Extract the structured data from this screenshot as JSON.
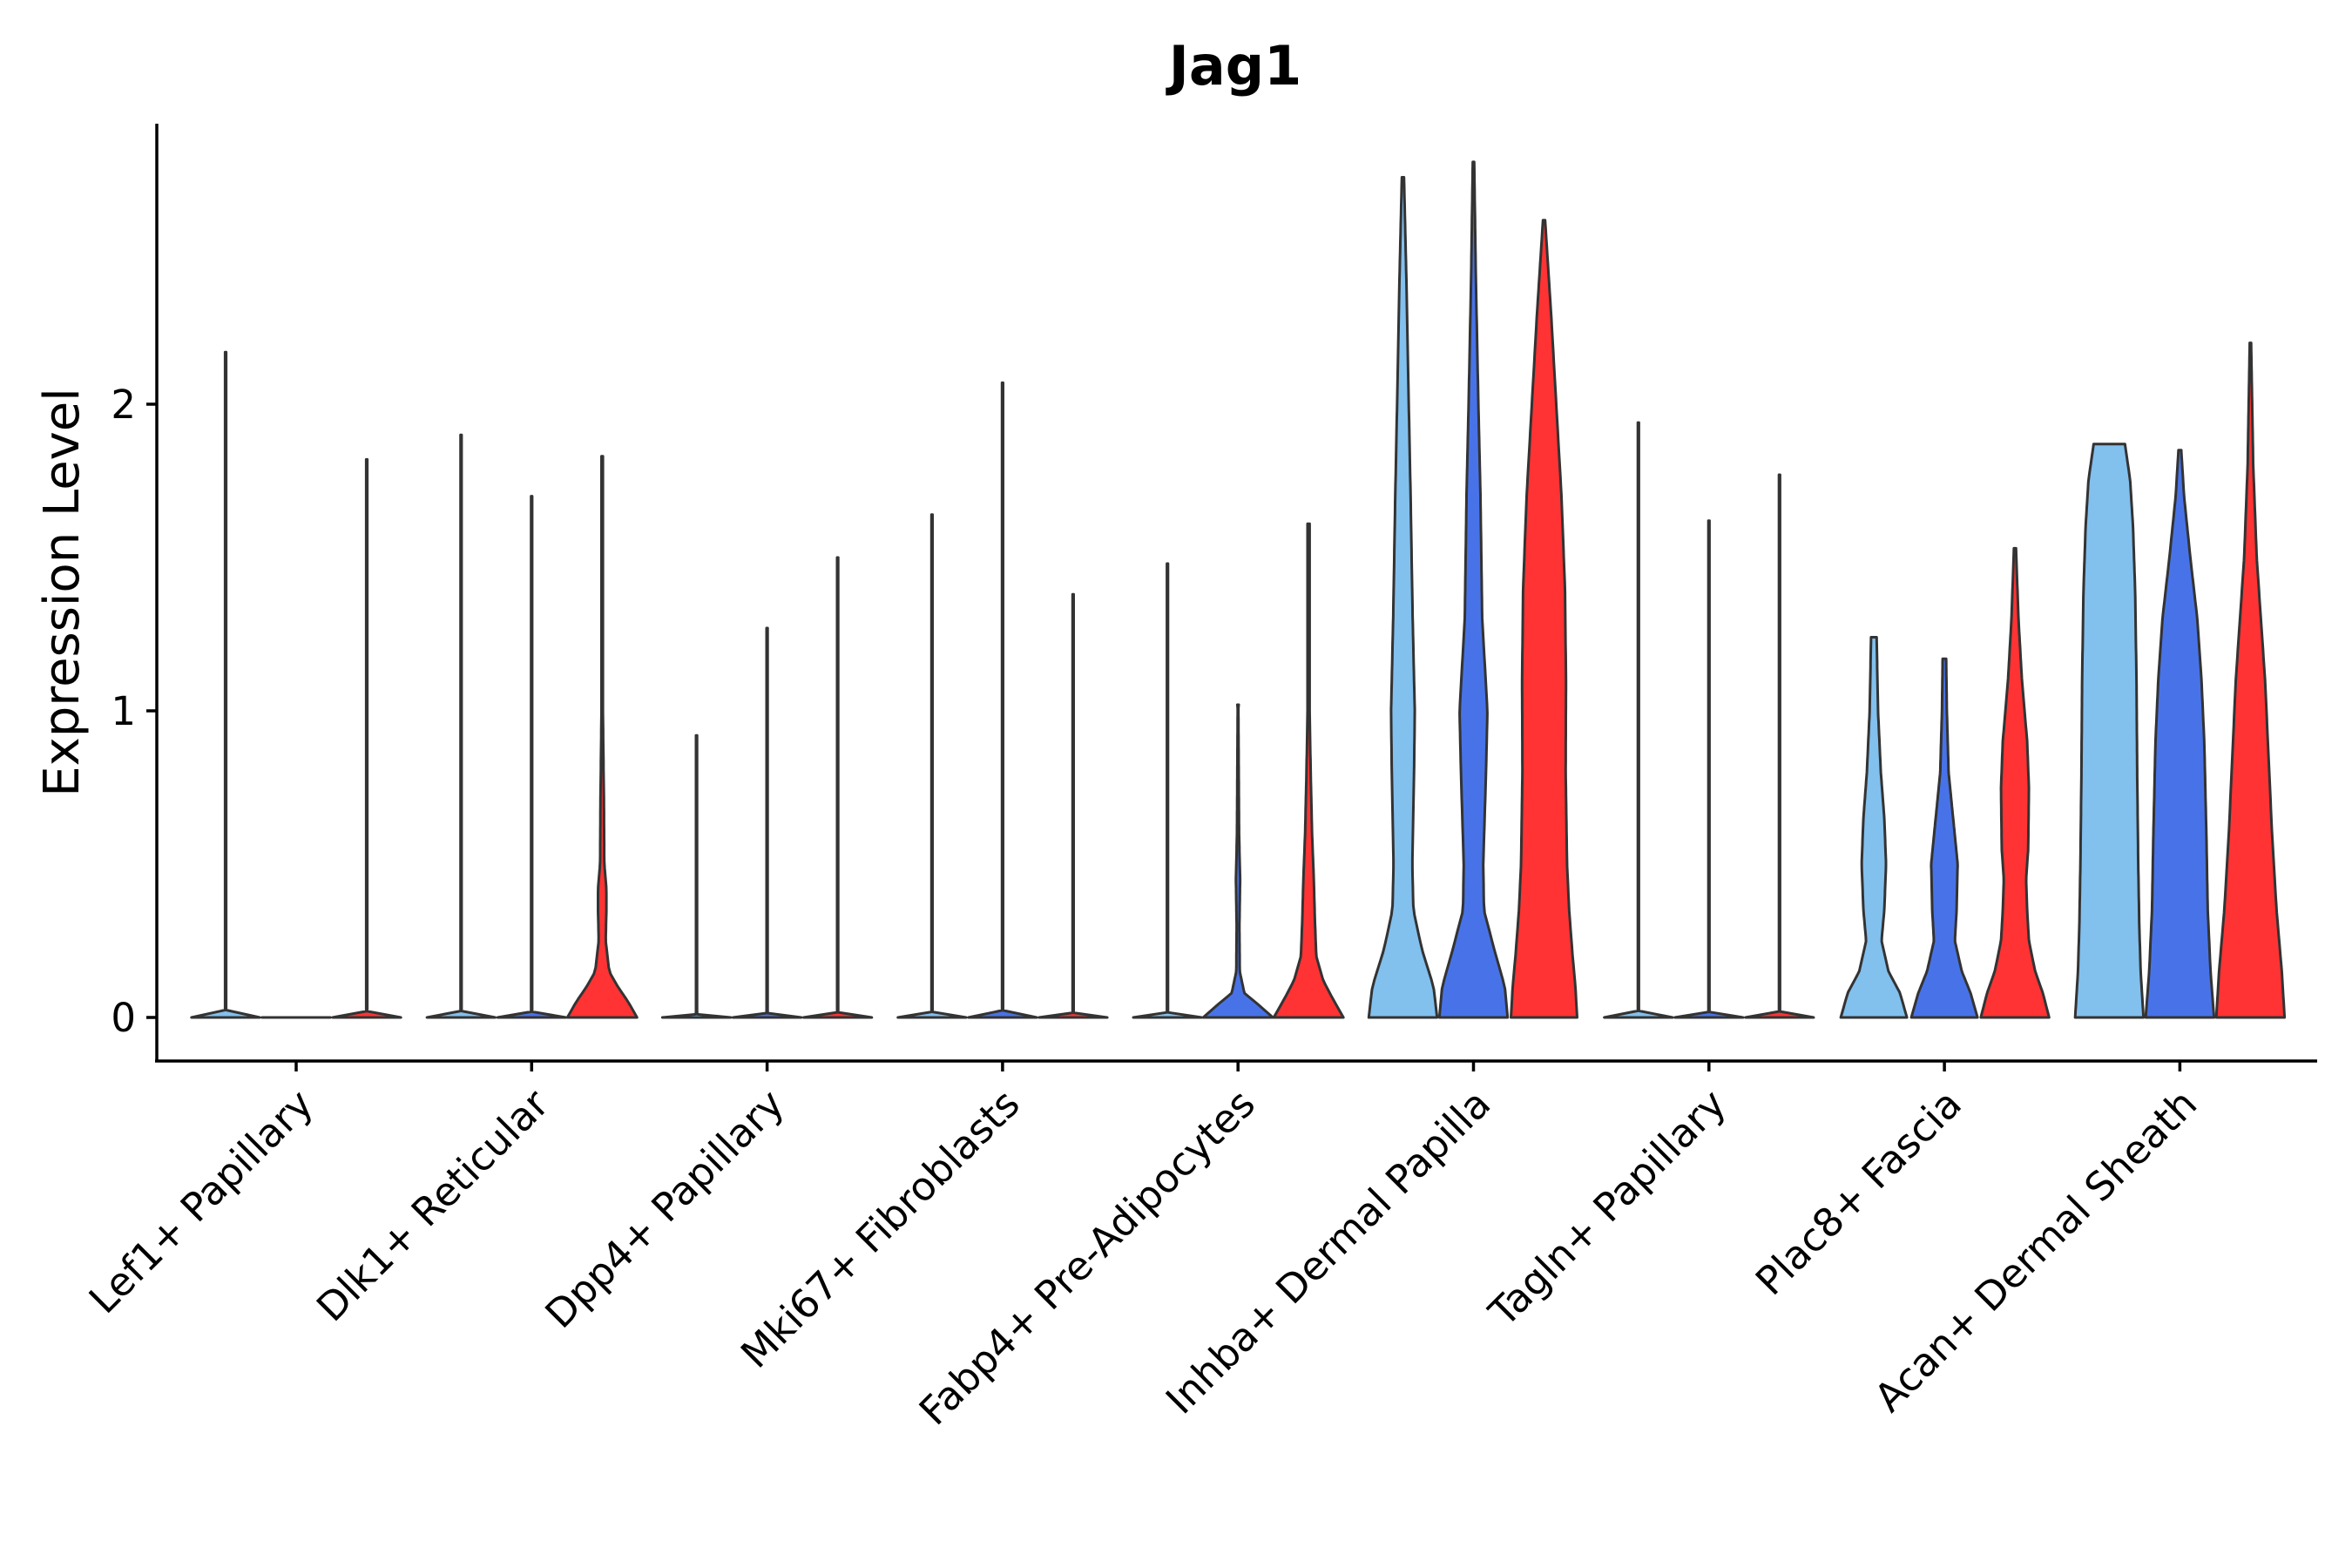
{
  "chart_data": {
    "type": "violin",
    "title": "Jag1",
    "xlabel": "",
    "ylabel": "Expression Level",
    "ylim": [
      -0.14,
      2.95
    ],
    "yticks": [
      {
        "value": 0,
        "label": "0"
      },
      {
        "value": 1,
        "label": "1"
      },
      {
        "value": 2,
        "label": "2"
      }
    ],
    "series_colors": [
      "#82c0ee",
      "#4873e8",
      "#ff3333"
    ],
    "outline_color": "#333333",
    "groups": [
      {
        "label": "Lef1+ Papillary",
        "violins": [
          {
            "max": 2.17,
            "profile": [
              [
                0,
                0.0
              ]
            ]
          },
          {
            "max": 0.0,
            "profile": [
              [
                0,
                0.0
              ]
            ]
          },
          {
            "max": 1.82,
            "profile": [
              [
                0,
                0.0
              ]
            ]
          }
        ]
      },
      {
        "label": "Dlk1+ Reticular",
        "violins": [
          {
            "max": 1.9,
            "profile": [
              [
                0,
                0.0
              ]
            ]
          },
          {
            "max": 1.7,
            "profile": [
              [
                0,
                0.0
              ]
            ]
          },
          {
            "max": 1.83,
            "profile": [
              [
                0,
                1.0
              ],
              [
                0.05,
                0.75
              ],
              [
                0.1,
                0.45
              ],
              [
                0.15,
                0.2
              ],
              [
                0.25,
                0.1
              ],
              [
                0.35,
                0.12
              ],
              [
                0.42,
                0.12
              ],
              [
                0.5,
                0.06
              ],
              [
                0.7,
                0.05
              ],
              [
                1.0,
                0.02
              ]
            ]
          }
        ]
      },
      {
        "label": "Dpp4+ Papillary",
        "violins": [
          {
            "max": 0.92,
            "profile": [
              [
                0,
                0.0
              ]
            ]
          },
          {
            "max": 1.27,
            "profile": [
              [
                0,
                0.0
              ]
            ]
          },
          {
            "max": 1.5,
            "profile": [
              [
                0,
                0.0
              ]
            ]
          }
        ]
      },
      {
        "label": "Mki67+ Fibroblasts",
        "violins": [
          {
            "max": 1.64,
            "profile": [
              [
                0,
                0.0
              ]
            ]
          },
          {
            "max": 2.07,
            "profile": [
              [
                0,
                0.0
              ]
            ]
          },
          {
            "max": 1.38,
            "profile": [
              [
                0,
                0.0
              ]
            ]
          }
        ]
      },
      {
        "label": "Fabp4+ Pre-Adipocytes",
        "violins": [
          {
            "max": 1.48,
            "profile": [
              [
                0,
                0.0
              ]
            ]
          },
          {
            "max": 1.02,
            "profile": [
              [
                0,
                1.0
              ],
              [
                0.04,
                0.6
              ],
              [
                0.08,
                0.18
              ],
              [
                0.15,
                0.05
              ],
              [
                0.3,
                0.04
              ],
              [
                0.45,
                0.06
              ],
              [
                0.6,
                0.03
              ],
              [
                1.0,
                0.01
              ]
            ]
          },
          {
            "max": 1.61,
            "profile": [
              [
                0,
                1.0
              ],
              [
                0.06,
                0.7
              ],
              [
                0.12,
                0.42
              ],
              [
                0.2,
                0.22
              ],
              [
                0.32,
                0.18
              ],
              [
                0.45,
                0.15
              ],
              [
                0.6,
                0.1
              ],
              [
                0.8,
                0.06
              ],
              [
                1.0,
                0.03
              ]
            ]
          }
        ]
      },
      {
        "label": "Inhba+ Dermal Papilla",
        "violins": [
          {
            "max": 2.74,
            "profile": [
              [
                0,
                0.98
              ],
              [
                0.1,
                0.88
              ],
              [
                0.22,
                0.55
              ],
              [
                0.35,
                0.3
              ],
              [
                0.5,
                0.27
              ],
              [
                0.8,
                0.32
              ],
              [
                1.0,
                0.34
              ],
              [
                1.3,
                0.28
              ],
              [
                1.7,
                0.22
              ],
              [
                2.1,
                0.15
              ],
              [
                2.4,
                0.1
              ],
              [
                2.74,
                0.03
              ]
            ]
          },
          {
            "max": 2.79,
            "profile": [
              [
                0,
                0.98
              ],
              [
                0.1,
                0.9
              ],
              [
                0.22,
                0.6
              ],
              [
                0.35,
                0.3
              ],
              [
                0.5,
                0.28
              ],
              [
                0.8,
                0.36
              ],
              [
                1.0,
                0.4
              ],
              [
                1.3,
                0.25
              ],
              [
                1.7,
                0.2
              ],
              [
                2.0,
                0.14
              ],
              [
                2.4,
                0.07
              ],
              [
                2.79,
                0.02
              ]
            ]
          },
          {
            "max": 2.6,
            "profile": [
              [
                0,
                0.95
              ],
              [
                0.1,
                0.9
              ],
              [
                0.2,
                0.82
              ],
              [
                0.35,
                0.72
              ],
              [
                0.5,
                0.66
              ],
              [
                0.8,
                0.62
              ],
              [
                1.1,
                0.63
              ],
              [
                1.4,
                0.6
              ],
              [
                1.7,
                0.5
              ],
              [
                2.0,
                0.35
              ],
              [
                2.3,
                0.2
              ],
              [
                2.6,
                0.03
              ]
            ]
          }
        ]
      },
      {
        "label": "Tagln+ Papillary",
        "violins": [
          {
            "max": 1.94,
            "profile": [
              [
                0,
                0.0
              ]
            ]
          },
          {
            "max": 1.62,
            "profile": [
              [
                0,
                0.0
              ]
            ]
          },
          {
            "max": 1.77,
            "profile": [
              [
                0,
                0.0
              ]
            ]
          }
        ]
      },
      {
        "label": "Plac8+ Fascia",
        "violins": [
          {
            "max": 1.24,
            "profile": [
              [
                0,
                0.95
              ],
              [
                0.08,
                0.75
              ],
              [
                0.15,
                0.42
              ],
              [
                0.25,
                0.22
              ],
              [
                0.35,
                0.3
              ],
              [
                0.5,
                0.35
              ],
              [
                0.65,
                0.3
              ],
              [
                0.8,
                0.2
              ],
              [
                1.0,
                0.12
              ],
              [
                1.24,
                0.08
              ]
            ]
          },
          {
            "max": 1.17,
            "profile": [
              [
                0,
                0.95
              ],
              [
                0.08,
                0.75
              ],
              [
                0.15,
                0.5
              ],
              [
                0.25,
                0.3
              ],
              [
                0.35,
                0.35
              ],
              [
                0.5,
                0.38
              ],
              [
                0.65,
                0.25
              ],
              [
                0.8,
                0.12
              ],
              [
                1.0,
                0.07
              ],
              [
                1.17,
                0.05
              ]
            ]
          },
          {
            "max": 1.53,
            "profile": [
              [
                0,
                0.98
              ],
              [
                0.08,
                0.8
              ],
              [
                0.15,
                0.58
              ],
              [
                0.25,
                0.4
              ],
              [
                0.35,
                0.35
              ],
              [
                0.45,
                0.32
              ],
              [
                0.55,
                0.38
              ],
              [
                0.75,
                0.4
              ],
              [
                0.9,
                0.35
              ],
              [
                1.1,
                0.2
              ],
              [
                1.3,
                0.1
              ],
              [
                1.53,
                0.03
              ]
            ]
          }
        ]
      },
      {
        "label": "Acan+ Dermal Sheath",
        "violins": [
          {
            "max": 1.87,
            "profile": [
              [
                0,
                0.98
              ],
              [
                0.15,
                0.9
              ],
              [
                0.3,
                0.86
              ],
              [
                0.5,
                0.83
              ],
              [
                0.8,
                0.8
              ],
              [
                1.1,
                0.78
              ],
              [
                1.4,
                0.74
              ],
              [
                1.6,
                0.68
              ],
              [
                1.75,
                0.6
              ],
              [
                1.87,
                0.45
              ]
            ]
          },
          {
            "max": 1.85,
            "profile": [
              [
                0,
                0.98
              ],
              [
                0.15,
                0.88
              ],
              [
                0.35,
                0.8
              ],
              [
                0.6,
                0.76
              ],
              [
                0.9,
                0.7
              ],
              [
                1.1,
                0.62
              ],
              [
                1.3,
                0.5
              ],
              [
                1.5,
                0.3
              ],
              [
                1.7,
                0.12
              ],
              [
                1.85,
                0.04
              ]
            ]
          },
          {
            "max": 2.2,
            "profile": [
              [
                0,
                0.98
              ],
              [
                0.15,
                0.9
              ],
              [
                0.35,
                0.75
              ],
              [
                0.6,
                0.62
              ],
              [
                0.9,
                0.5
              ],
              [
                1.1,
                0.42
              ],
              [
                1.3,
                0.3
              ],
              [
                1.5,
                0.18
              ],
              [
                1.8,
                0.08
              ],
              [
                2.2,
                0.02
              ]
            ]
          }
        ]
      }
    ]
  }
}
